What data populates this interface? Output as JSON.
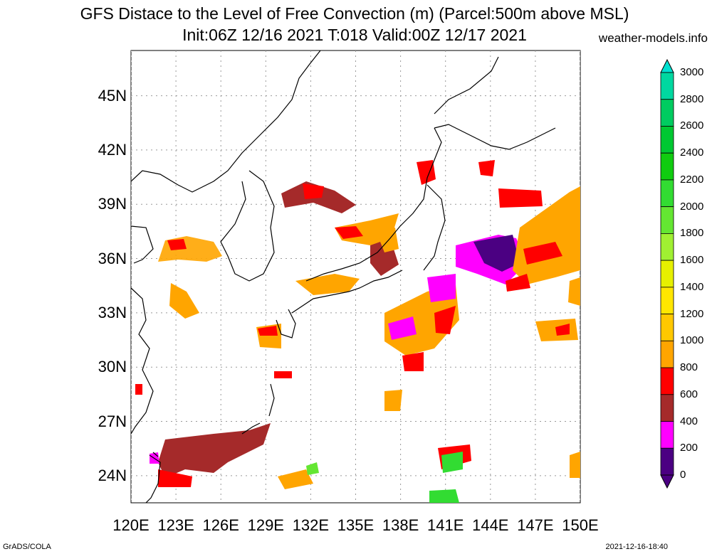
{
  "title": {
    "line1": "GFS Distace to the Level of Free Convection (m) (Parcel:500m above MSL)",
    "line2": "Init:06Z 12/16 2021 T:018 Valid:00Z 12/17 2021",
    "site": "weather-models.info"
  },
  "axes": {
    "lat_labels": [
      "45N",
      "42N",
      "39N",
      "36N",
      "33N",
      "30N",
      "27N",
      "24N"
    ],
    "lat_values": [
      45,
      42,
      39,
      36,
      33,
      30,
      27,
      24
    ],
    "lon_labels": [
      "120E",
      "123E",
      "126E",
      "129E",
      "132E",
      "135E",
      "138E",
      "141E",
      "144E",
      "147E",
      "150E"
    ],
    "lon_values": [
      120,
      123,
      126,
      129,
      132,
      135,
      138,
      141,
      144,
      147,
      150
    ],
    "lat_range": [
      22.5,
      47.5
    ],
    "lon_range": [
      120,
      150
    ],
    "grid": true
  },
  "colorbar": {
    "labels": [
      "3000",
      "2800",
      "2600",
      "2400",
      "2200",
      "2000",
      "1800",
      "1600",
      "1400",
      "1200",
      "1000",
      "800",
      "600",
      "400",
      "200",
      "0"
    ],
    "colors": [
      "#00e0d0",
      "#00d8a0",
      "#00cc60",
      "#00c832",
      "#10cc10",
      "#32dc32",
      "#64e632",
      "#a0f032",
      "#e6f000",
      "#ffe600",
      "#ffc800",
      "#ffa500",
      "#ff0000",
      "#a52a2a",
      "#ff00ff",
      "#4b0082"
    ]
  },
  "footer": {
    "left": "GrADS/COLA",
    "right": "2021-12-16-18:40"
  }
}
